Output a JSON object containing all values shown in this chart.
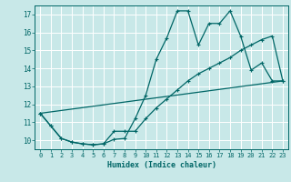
{
  "background_color": "#c8e8e8",
  "grid_color": "#ffffff",
  "line_color": "#006666",
  "marker": "+",
  "xlabel": "Humidex (Indice chaleur)",
  "xlim": [
    -0.5,
    23.5
  ],
  "ylim": [
    9.5,
    17.5
  ],
  "xticks": [
    0,
    1,
    2,
    3,
    4,
    5,
    6,
    7,
    8,
    9,
    10,
    11,
    12,
    13,
    14,
    15,
    16,
    17,
    18,
    19,
    20,
    21,
    22,
    23
  ],
  "yticks": [
    10,
    11,
    12,
    13,
    14,
    15,
    16,
    17
  ],
  "line1_x": [
    0,
    1,
    2,
    3,
    4,
    5,
    6,
    7,
    8,
    9,
    10,
    11,
    12,
    13,
    14,
    15,
    16,
    17,
    18,
    19,
    20,
    21,
    22,
    23
  ],
  "line1_y": [
    11.5,
    10.8,
    10.1,
    9.9,
    9.8,
    9.75,
    9.8,
    10.05,
    10.1,
    11.2,
    12.5,
    14.5,
    15.7,
    17.2,
    17.2,
    15.3,
    16.5,
    16.5,
    17.2,
    15.8,
    13.9,
    14.3,
    13.3,
    13.3
  ],
  "line2_x": [
    0,
    1,
    2,
    3,
    4,
    5,
    6,
    7,
    8,
    9,
    10,
    11,
    12,
    13,
    14,
    15,
    16,
    17,
    18,
    19,
    20,
    21,
    22,
    23
  ],
  "line2_y": [
    11.5,
    10.8,
    10.1,
    9.9,
    9.8,
    9.75,
    9.8,
    10.5,
    10.5,
    10.5,
    11.2,
    11.8,
    12.3,
    12.8,
    13.3,
    13.7,
    14.0,
    14.3,
    14.6,
    15.0,
    15.3,
    15.6,
    15.8,
    13.3
  ],
  "line3_x": [
    0,
    23
  ],
  "line3_y": [
    11.5,
    13.3
  ]
}
